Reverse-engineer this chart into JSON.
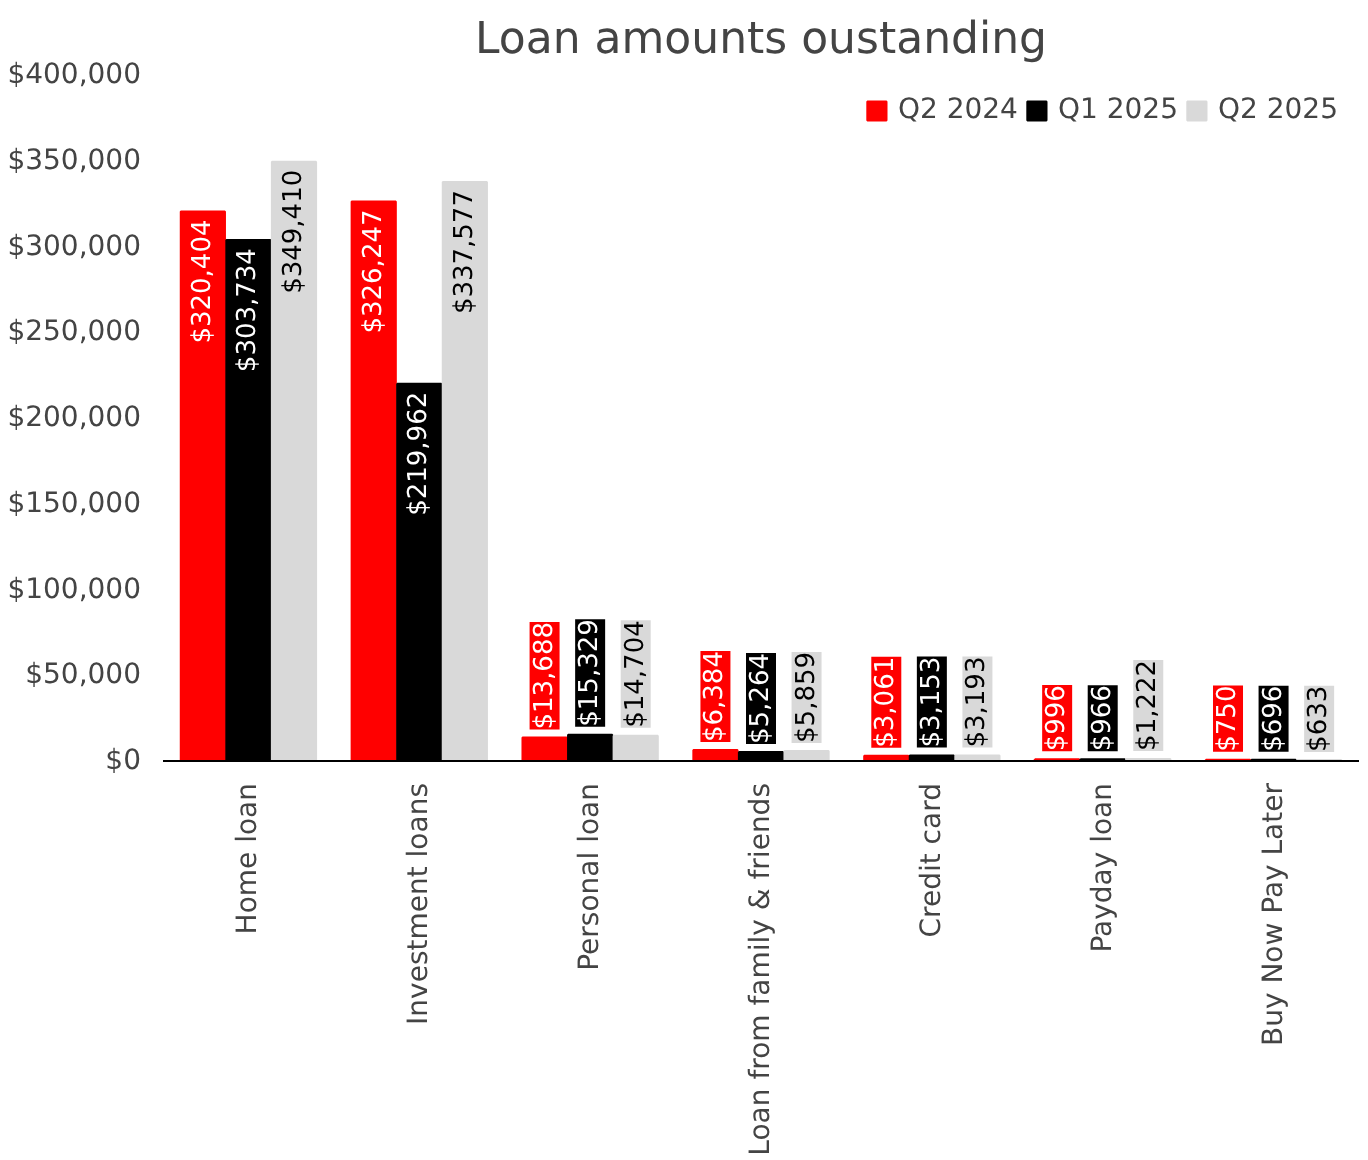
{
  "chart_data": {
    "type": "bar",
    "title": "Loan amounts oustanding",
    "categories": [
      "Home loan",
      "Investment loans",
      "Personal loan",
      "Loan from family & friends",
      "Credit card",
      "Payday loan",
      "Buy Now Pay Later"
    ],
    "series": [
      {
        "name": "Q2 2024",
        "color": "#ff0000",
        "values": [
          320404,
          326247,
          13688,
          6384,
          3061,
          996,
          750
        ],
        "value_labels": [
          "$320,404",
          "$326,247",
          "$13,688",
          "$6,384",
          "$3,061",
          "$996",
          "$750"
        ]
      },
      {
        "name": "Q1 2025",
        "color": "#000000",
        "values": [
          303734,
          219962,
          15329,
          5264,
          3153,
          966,
          696
        ],
        "value_labels": [
          "$303,734",
          "$219,962",
          "$15,329",
          "$5,264",
          "$3,153",
          "$966",
          "$696"
        ]
      },
      {
        "name": "Q2 2025",
        "color": "#d9d9d9",
        "values": [
          349410,
          337577,
          14704,
          5859,
          3193,
          1222,
          633
        ],
        "value_labels": [
          "$349,410",
          "$337,577",
          "$14,704",
          "$5,859",
          "$3,193",
          "$1,222",
          "$633"
        ]
      }
    ],
    "ylim": [
      0,
      400000
    ],
    "yticks": [
      {
        "value": 0,
        "label": "$0"
      },
      {
        "value": 50000,
        "label": "$50,000"
      },
      {
        "value": 100000,
        "label": "$100,000"
      },
      {
        "value": 150000,
        "label": "$150,000"
      },
      {
        "value": 200000,
        "label": "$200,000"
      },
      {
        "value": 250000,
        "label": "$250,000"
      },
      {
        "value": 300000,
        "label": "$300,000"
      },
      {
        "value": 350000,
        "label": "$350,000"
      },
      {
        "value": 400000,
        "label": "$400,000"
      }
    ],
    "grid": false,
    "legend": "top right"
  }
}
